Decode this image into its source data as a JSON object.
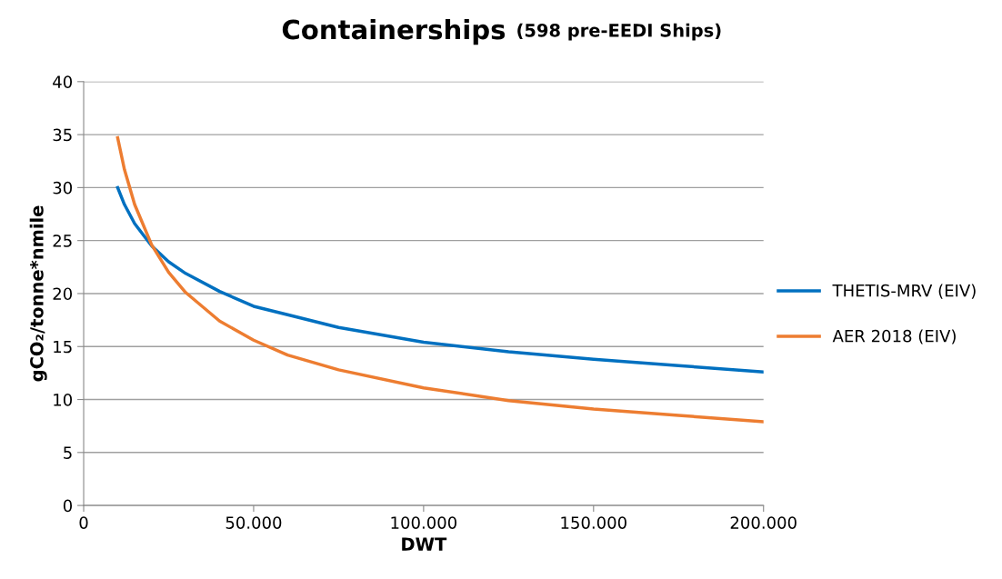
{
  "chart_data": {
    "type": "line",
    "title": "Containerships",
    "subtitle": "(598 pre-EEDI Ships)",
    "xlabel": "DWT",
    "ylabel": "gCO₂/tonne*nmile",
    "x": [
      10000,
      12000,
      15000,
      20000,
      25000,
      30000,
      40000,
      50000,
      60000,
      75000,
      100000,
      125000,
      150000,
      175000,
      200000
    ],
    "series": [
      {
        "name": "THETIS-MRV (EIV)",
        "color": "#0070c0",
        "values": [
          30.0,
          28.4,
          26.6,
          24.5,
          23.0,
          21.9,
          20.2,
          18.8,
          18.0,
          16.8,
          15.4,
          14.5,
          13.8,
          13.2,
          12.6
        ]
      },
      {
        "name": "AER 2018 (EIV)",
        "color": "#ed7d31",
        "values": [
          34.7,
          31.7,
          28.4,
          24.6,
          22.0,
          20.1,
          17.4,
          15.6,
          14.2,
          12.8,
          11.1,
          9.9,
          9.1,
          8.5,
          7.9
        ]
      }
    ],
    "xlim": [
      0,
      200000
    ],
    "xticks": [
      0,
      {
        "value": 50000,
        "label": "50.000"
      },
      {
        "value": 100000,
        "label": "100.000"
      },
      {
        "value": 150000,
        "label": "150.000"
      },
      {
        "value": 200000,
        "label": "200.000"
      }
    ],
    "ylim": [
      0,
      40
    ],
    "yticks": [
      0,
      5,
      10,
      15,
      20,
      25,
      30,
      35,
      40
    ],
    "grid": "y",
    "legend": "right",
    "line_style": "solid"
  }
}
